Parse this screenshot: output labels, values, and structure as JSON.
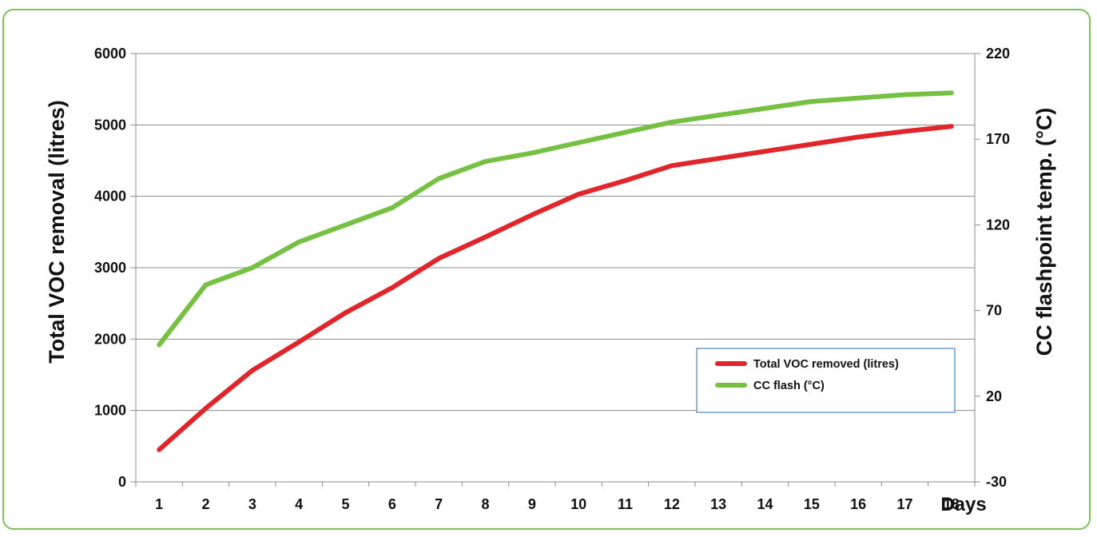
{
  "chart_data": {
    "type": "line",
    "x": [
      "1",
      "2",
      "3",
      "4",
      "5",
      "6",
      "7",
      "8",
      "9",
      "10",
      "11",
      "12",
      "13",
      "14",
      "15",
      "16",
      "17",
      "18"
    ],
    "xlabel": "Days",
    "y_left": {
      "label": "Total VOC removal (litres)",
      "lim": [
        0,
        6000
      ],
      "ticks": [
        "0",
        "1000",
        "2000",
        "3000",
        "4000",
        "5000",
        "6000"
      ]
    },
    "y_right": {
      "label": "CC flashpoint temp. (°C)",
      "lim": [
        -30,
        220
      ],
      "ticks": [
        "-30",
        "20",
        "70",
        "120",
        "170",
        "220"
      ]
    },
    "series": [
      {
        "name": "Total VOC removed (litres)",
        "axis": "left",
        "color": "#e0262b",
        "values": [
          450,
          1030,
          1560,
          1960,
          2370,
          2720,
          3130,
          3430,
          3740,
          4030,
          4220,
          4430,
          4530,
          4630,
          4730,
          4830,
          4910,
          4980
        ]
      },
      {
        "name": "CC flash (°C)",
        "axis": "right",
        "color": "#76c043",
        "values": [
          50,
          85,
          95,
          110,
          120,
          130,
          147,
          157,
          162,
          168,
          174,
          180,
          184,
          188,
          192,
          194,
          196,
          197
        ]
      }
    ],
    "grid": "horizontal",
    "legend_position": "inside-lower-right"
  }
}
